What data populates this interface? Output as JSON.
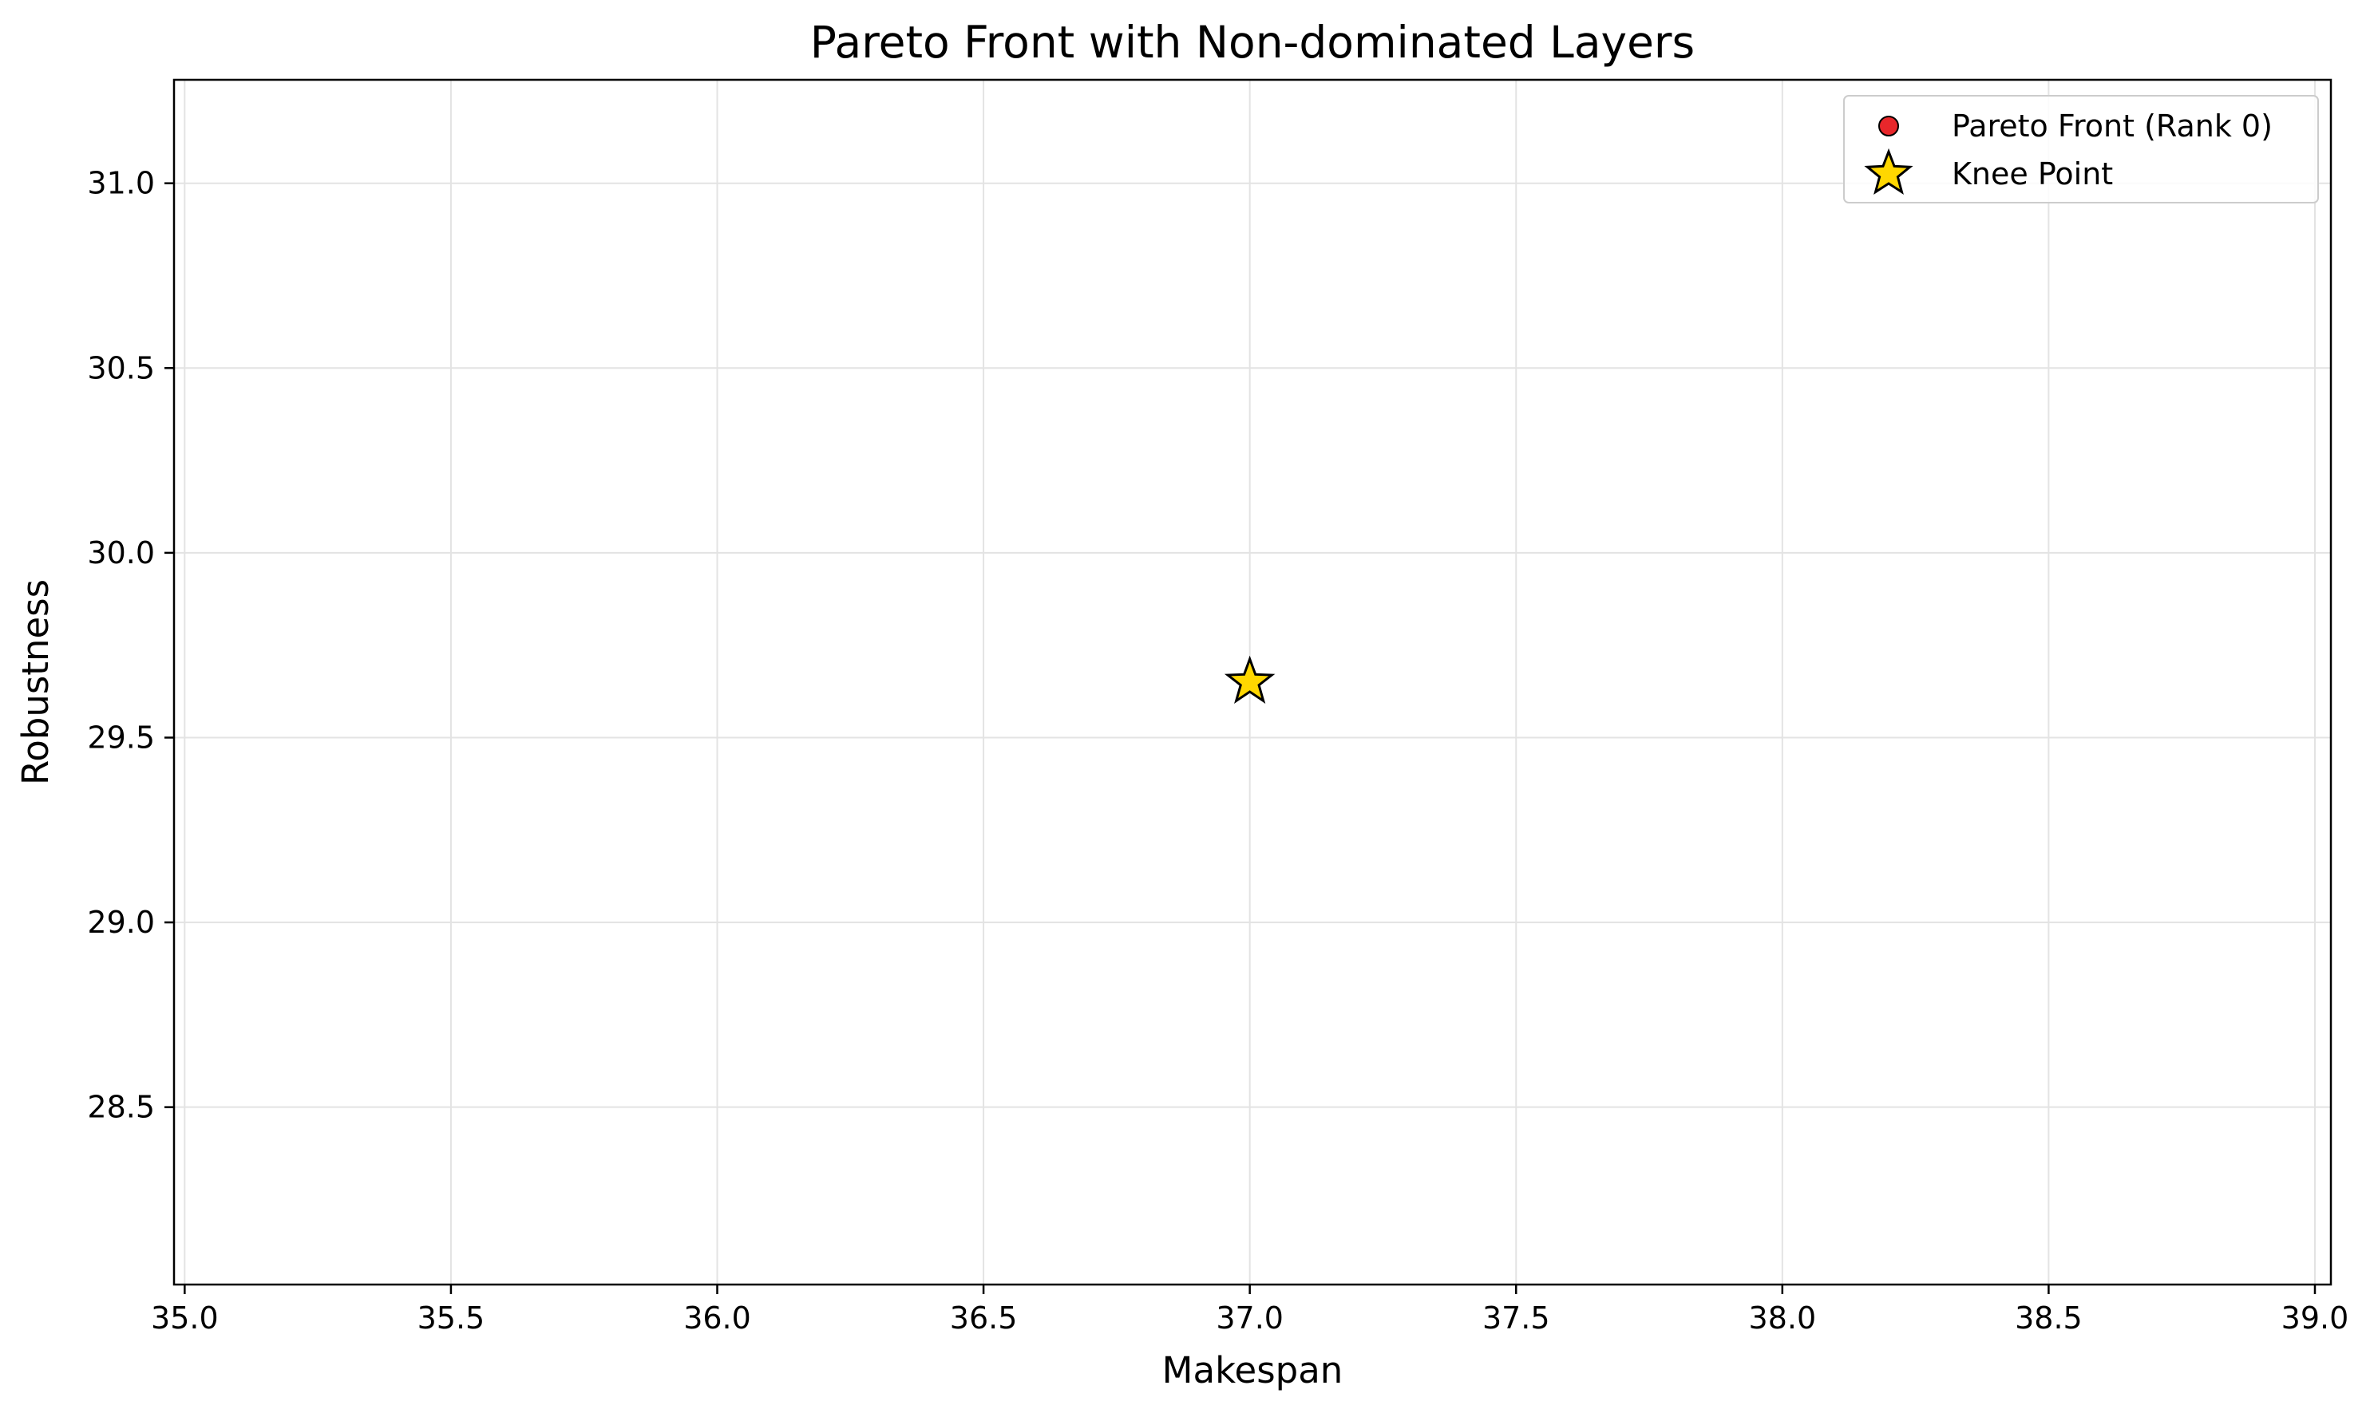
{
  "chart_data": {
    "type": "scatter",
    "title": "Pareto Front with Non-dominated Layers",
    "xlabel": "Makespan",
    "ylabel": "Robustness",
    "xlim": [
      34.98,
      39.03
    ],
    "ylim": [
      28.02,
      31.28
    ],
    "x_ticks": [
      35.0,
      35.5,
      36.0,
      36.5,
      37.0,
      37.5,
      38.0,
      38.5,
      39.0
    ],
    "x_tick_labels": [
      "35.0",
      "35.5",
      "36.0",
      "36.5",
      "37.0",
      "37.5",
      "38.0",
      "38.5",
      "39.0"
    ],
    "y_ticks": [
      28.5,
      29.0,
      29.5,
      30.0,
      30.5,
      31.0
    ],
    "y_tick_labels": [
      "28.5",
      "29.0",
      "29.5",
      "30.0",
      "30.5",
      "31.0"
    ],
    "grid": true,
    "legend_position": "top-right",
    "series": [
      {
        "name": "Pareto Front (Rank 0)",
        "marker": "circle",
        "color": "#e8272b",
        "points": [
          {
            "x": 37.0,
            "y": 29.65
          }
        ]
      },
      {
        "name": "Knee Point",
        "marker": "star",
        "color": "#ffd700",
        "points": [
          {
            "x": 37.0,
            "y": 29.65
          }
        ]
      }
    ]
  }
}
